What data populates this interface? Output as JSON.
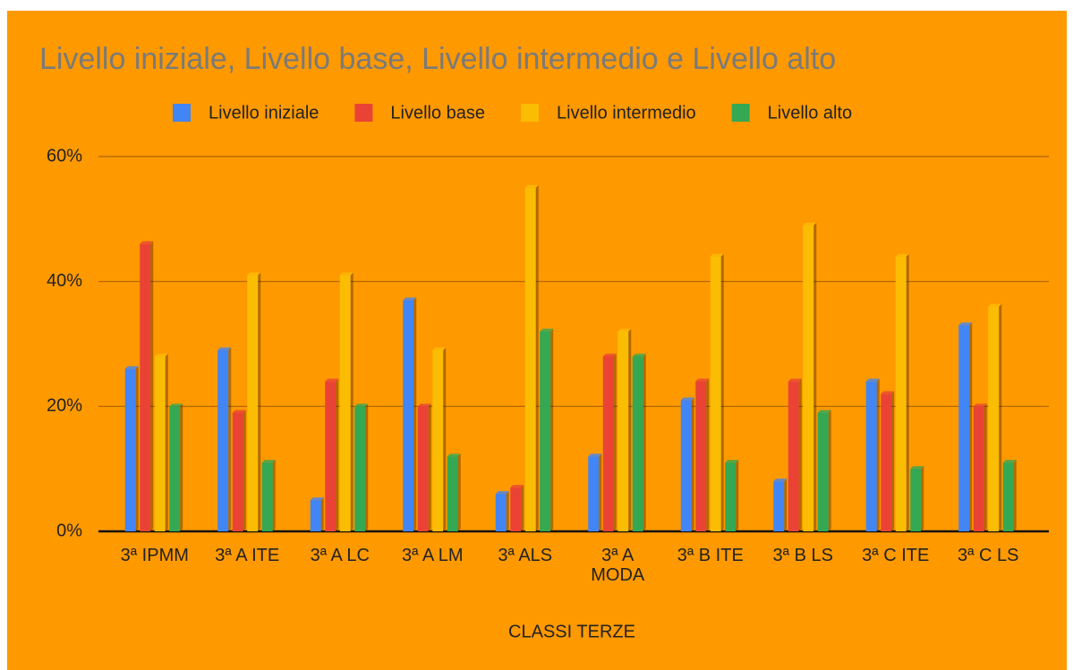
{
  "chart_data": {
    "type": "bar",
    "title": "Livello iniziale, Livello base, Livello intermedio e Livello alto",
    "x_label": "CLASSI TERZE",
    "categories": [
      "3ª IPMM",
      "3ª A ITE",
      "3ª A LC",
      "3ª A LM",
      "3ª ALS",
      "3ª A MODA",
      "3ª B ITE",
      "3ª B LS",
      "3ª C ITE",
      "3ª C LS"
    ],
    "series": [
      {
        "name": "Livello iniziale",
        "color": "#4285f4",
        "values": [
          26,
          29,
          5,
          37,
          6,
          12,
          21,
          8,
          24,
          33
        ]
      },
      {
        "name": "Livello base",
        "color": "#ea4335",
        "values": [
          46,
          19,
          24,
          20,
          7,
          28,
          24,
          24,
          22,
          20
        ]
      },
      {
        "name": "Livello intermedio",
        "color": "#fbbc04",
        "values": [
          28,
          41,
          41,
          29,
          55,
          32,
          44,
          49,
          44,
          36
        ]
      },
      {
        "name": "Livello alto",
        "color": "#34a853",
        "values": [
          20,
          11,
          20,
          12,
          32,
          28,
          11,
          19,
          10,
          11
        ]
      }
    ],
    "ylim": [
      0,
      60
    ],
    "yticks": [
      {
        "value": 0,
        "label": "0%"
      },
      {
        "value": 20,
        "label": "20%"
      },
      {
        "value": 40,
        "label": "40%"
      },
      {
        "value": 60,
        "label": "60%"
      }
    ],
    "grid": true,
    "legend": "top"
  }
}
